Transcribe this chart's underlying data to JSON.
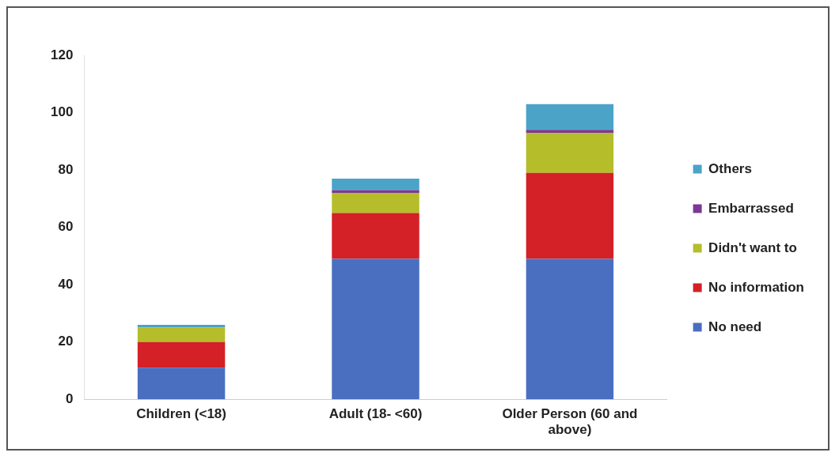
{
  "chart_data": {
    "type": "bar",
    "stacked": true,
    "categories": [
      "Children (<18)",
      "Adult (18- <60)",
      "Older Person (60 and above)"
    ],
    "series": [
      {
        "name": "No need",
        "color": "#4a6fc0",
        "values": [
          11,
          49,
          49
        ]
      },
      {
        "name": "No information",
        "color": "#d42027",
        "values": [
          9,
          16,
          30
        ]
      },
      {
        "name": "Didn't want to",
        "color": "#b5bd2a",
        "values": [
          5,
          7,
          14
        ]
      },
      {
        "name": "Embarrassed",
        "color": "#7a3a96",
        "values": [
          0,
          1,
          1
        ]
      },
      {
        "name": "Others",
        "color": "#4ba3c8",
        "values": [
          1,
          4,
          9
        ]
      }
    ],
    "ylim": [
      0,
      120
    ],
    "yticks": [
      0,
      20,
      40,
      60,
      80,
      100,
      120
    ],
    "grid": false,
    "legend": "right"
  }
}
